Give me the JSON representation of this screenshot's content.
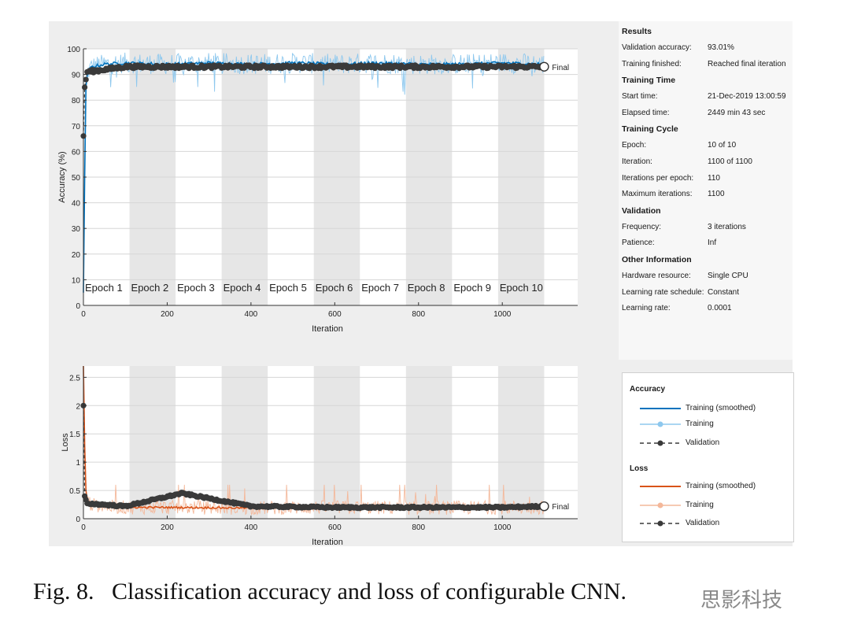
{
  "caption": {
    "label": "Fig. 8.",
    "text": "Classification accuracy and loss of configurable CNN."
  },
  "watermark": "思影科技",
  "chart_data": [
    {
      "type": "line",
      "ylabel": "Accuracy (%)",
      "xlabel": "Iteration",
      "xlim": [
        0,
        1180
      ],
      "ylim": [
        0,
        100
      ],
      "xticks": [
        "0",
        "200",
        "400",
        "600",
        "800",
        "1000"
      ],
      "yticks": [
        "0",
        "10",
        "20",
        "30",
        "40",
        "50",
        "60",
        "70",
        "80",
        "90",
        "100"
      ],
      "epochs": [
        "Epoch 1",
        "Epoch 2",
        "Epoch 3",
        "Epoch 4",
        "Epoch 5",
        "Epoch 6",
        "Epoch 7",
        "Epoch 8",
        "Epoch 9",
        "Epoch 10"
      ],
      "iterations_per_epoch": 110,
      "final_label": "Final",
      "series": [
        {
          "name": "Training (smoothed)",
          "color": "#0072bd",
          "x": [
            0,
            3,
            6,
            10,
            20,
            50,
            100,
            200,
            300,
            400,
            500,
            600,
            700,
            800,
            900,
            1000,
            1100
          ],
          "y": [
            5,
            50,
            85,
            91,
            93,
            94,
            94.5,
            94,
            94.5,
            94,
            94.5,
            94,
            94.5,
            94,
            94,
            94.5,
            94
          ]
        },
        {
          "name": "Training",
          "color": "#8ec8ee",
          "range": [
            82,
            100
          ]
        },
        {
          "name": "Validation",
          "color": "#3a3a3a",
          "x": [
            0,
            3,
            9,
            100,
            200,
            300,
            400,
            500,
            600,
            700,
            800,
            900,
            1000,
            1100
          ],
          "y": [
            66,
            85,
            91,
            93,
            93,
            93,
            93,
            93,
            93,
            93,
            93,
            93,
            93,
            93.01
          ]
        }
      ]
    },
    {
      "type": "line",
      "ylabel": "Loss",
      "xlabel": "Iteration",
      "xlim": [
        0,
        1180
      ],
      "ylim": [
        0,
        2.7
      ],
      "xticks": [
        "0",
        "200",
        "400",
        "600",
        "800",
        "1000"
      ],
      "yticks": [
        "0",
        "0.5",
        "1",
        "1.5",
        "2",
        "2.5"
      ],
      "final_label": "Final",
      "series": [
        {
          "name": "Training (smoothed)",
          "color": "#d95319",
          "x": [
            0,
            3,
            6,
            10,
            20,
            50,
            100,
            200,
            400,
            600,
            800,
            1000,
            1100
          ],
          "y": [
            2.7,
            1.3,
            0.5,
            0.3,
            0.25,
            0.22,
            0.2,
            0.2,
            0.19,
            0.2,
            0.19,
            0.2,
            0.2
          ]
        },
        {
          "name": "Training",
          "color": "#f4b89a",
          "range": [
            0.05,
            0.6
          ]
        },
        {
          "name": "Validation",
          "color": "#3a3a3a",
          "x": [
            0,
            3,
            9,
            100,
            235,
            400,
            600,
            800,
            1000,
            1100
          ],
          "y": [
            2.0,
            0.4,
            0.27,
            0.22,
            0.45,
            0.22,
            0.2,
            0.2,
            0.2,
            0.22
          ]
        }
      ]
    }
  ],
  "results": {
    "title": "Results",
    "rows": [
      {
        "k": "Validation accuracy:",
        "v": "93.01%"
      },
      {
        "k": "Training finished:",
        "v": "Reached final iteration"
      }
    ]
  },
  "training_time": {
    "title": "Training Time",
    "rows": [
      {
        "k": "Start time:",
        "v": "21-Dec-2019 13:00:59"
      },
      {
        "k": "Elapsed time:",
        "v": "2449 min 43 sec"
      }
    ]
  },
  "training_cycle": {
    "title": "Training Cycle",
    "rows": [
      {
        "k": "Epoch:",
        "v": "10 of 10"
      },
      {
        "k": "Iteration:",
        "v": "1100 of 1100"
      },
      {
        "k": "Iterations per epoch:",
        "v": "110"
      },
      {
        "k": "Maximum iterations:",
        "v": "1100"
      }
    ]
  },
  "validation": {
    "title": "Validation",
    "rows": [
      {
        "k": "Frequency:",
        "v": "3 iterations"
      },
      {
        "k": "Patience:",
        "v": "Inf"
      }
    ]
  },
  "other_info": {
    "title": "Other Information",
    "rows": [
      {
        "k": "Hardware resource:",
        "v": "Single CPU"
      },
      {
        "k": "Learning rate schedule:",
        "v": "Constant"
      },
      {
        "k": "Learning rate:",
        "v": "0.0001"
      }
    ]
  },
  "legend": {
    "accuracy_title": "Accuracy",
    "loss_title": "Loss",
    "smoothed": "Training (smoothed)",
    "training": "Training",
    "validation": "Validation",
    "accuracy_colors": {
      "smoothed": "#0072bd",
      "training": "#8ec8ee",
      "validation": "#3a3a3a"
    },
    "loss_colors": {
      "smoothed": "#d95319",
      "training": "#f4b89a",
      "validation": "#3a3a3a"
    }
  }
}
